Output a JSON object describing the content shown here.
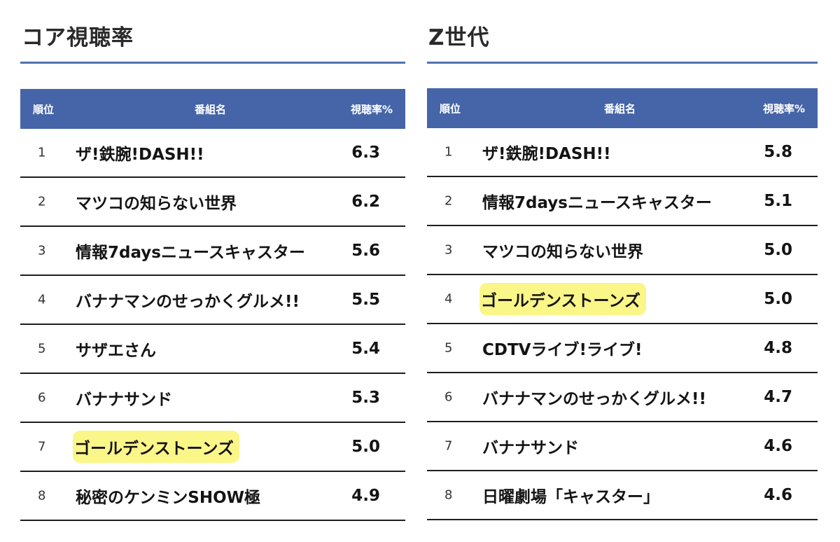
{
  "panels": [
    {
      "title": "コア視聴率",
      "headers": {
        "rank": "順位",
        "name": "番組名",
        "rate": "視聴率%"
      },
      "rows": [
        {
          "rank": "1",
          "name": "ザ!鉄腕!DASH!!",
          "rate": "6.3",
          "highlight": false
        },
        {
          "rank": "2",
          "name": "マツコの知らない世界",
          "rate": "6.2",
          "highlight": false
        },
        {
          "rank": "3",
          "name": "情報7daysニュースキャスター",
          "rate": "5.6",
          "highlight": false
        },
        {
          "rank": "4",
          "name": "バナナマンのせっかくグルメ!!",
          "rate": "5.5",
          "highlight": false
        },
        {
          "rank": "5",
          "name": "サザエさん",
          "rate": "5.4",
          "highlight": false
        },
        {
          "rank": "6",
          "name": "バナナサンド",
          "rate": "5.3",
          "highlight": false
        },
        {
          "rank": "7",
          "name": "ゴールデンストーンズ",
          "rate": "5.0",
          "highlight": true
        },
        {
          "rank": "8",
          "name": "秘密のケンミンSHOW極",
          "rate": "4.9",
          "highlight": false
        }
      ]
    },
    {
      "title": "Z世代",
      "headers": {
        "rank": "順位",
        "name": "番組名",
        "rate": "視聴率%"
      },
      "rows": [
        {
          "rank": "1",
          "name": "ザ!鉄腕!DASH!!",
          "rate": "5.8",
          "highlight": false
        },
        {
          "rank": "2",
          "name": "情報7daysニュースキャスター",
          "rate": "5.1",
          "highlight": false
        },
        {
          "rank": "3",
          "name": "マツコの知らない世界",
          "rate": "5.0",
          "highlight": false
        },
        {
          "rank": "4",
          "name": "ゴールデンストーンズ",
          "rate": "5.0",
          "highlight": true
        },
        {
          "rank": "5",
          "name": "CDTVライブ!ライブ!",
          "rate": "4.8",
          "highlight": false
        },
        {
          "rank": "6",
          "name": "バナナマンのせっかくグルメ!!",
          "rate": "4.7",
          "highlight": false
        },
        {
          "rank": "7",
          "name": "バナナサンド",
          "rate": "4.6",
          "highlight": false
        },
        {
          "rank": "8",
          "name": "日曜劇場「キャスター」",
          "rate": "4.6",
          "highlight": false
        }
      ]
    }
  ],
  "colors": {
    "header_bg": "#4565a8",
    "title_rule": "#5272ad",
    "highlight": "#fbf688",
    "row_divider": "#1e1e1e"
  }
}
